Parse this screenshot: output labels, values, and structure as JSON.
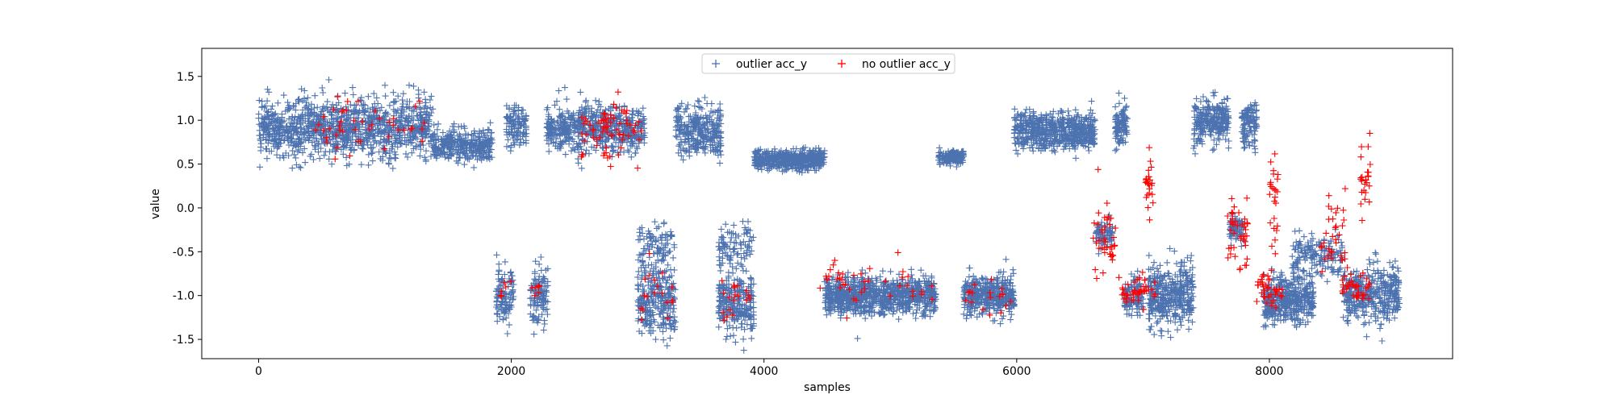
{
  "chart_data": {
    "type": "scatter",
    "title": "",
    "xlabel": "samples",
    "ylabel": "value",
    "xlim": [
      -450,
      9450
    ],
    "ylim": [
      -1.72,
      1.82
    ],
    "xticks": [
      0,
      2000,
      4000,
      6000,
      8000
    ],
    "yticks": [
      -1.5,
      -1.0,
      -0.5,
      0.0,
      0.5,
      1.0,
      1.5
    ],
    "xtick_labels": [
      "0",
      "2000",
      "4000",
      "6000",
      "8000"
    ],
    "ytick_labels": [
      "-1.5",
      "-1.0",
      "-0.5",
      "0.0",
      "0.5",
      "1.0",
      "1.5"
    ],
    "grid": false,
    "legend_placement": "top-center",
    "marker": "+",
    "series": [
      {
        "name": "outlier acc_y",
        "color": "#4c72b0",
        "clusters": [
          {
            "x_range": [
              0,
              1380
            ],
            "y_center": 0.9,
            "y_spread": 0.28,
            "count": 1100
          },
          {
            "x_range": [
              1380,
              1850
            ],
            "y_center": 0.72,
            "y_spread": 0.16,
            "count": 320
          },
          {
            "x_range": [
              1880,
              2020
            ],
            "y_center": -1.0,
            "y_spread": 0.26,
            "count": 110
          },
          {
            "x_range": [
              1960,
              2120
            ],
            "y_center": 0.92,
            "y_spread": 0.2,
            "count": 110
          },
          {
            "x_range": [
              2150,
              2290
            ],
            "y_center": -1.0,
            "y_spread": 0.26,
            "count": 110
          },
          {
            "x_range": [
              2280,
              3060
            ],
            "y_center": 0.9,
            "y_spread": 0.22,
            "count": 620
          },
          {
            "x_range": [
              3000,
              3300
            ],
            "y_center": -1.05,
            "y_spread": 0.32,
            "count": 260
          },
          {
            "x_range": [
              3000,
              3300
            ],
            "y_center": -0.45,
            "y_spread": 0.25,
            "count": 90
          },
          {
            "x_range": [
              3300,
              3660
            ],
            "y_center": 0.88,
            "y_spread": 0.22,
            "count": 300
          },
          {
            "x_range": [
              3640,
              3920
            ],
            "y_center": -1.1,
            "y_spread": 0.3,
            "count": 260
          },
          {
            "x_range": [
              3640,
              3920
            ],
            "y_center": -0.45,
            "y_spread": 0.25,
            "count": 90
          },
          {
            "x_range": [
              3920,
              4480
            ],
            "y_center": 0.55,
            "y_spread": 0.09,
            "count": 500
          },
          {
            "x_range": [
              4480,
              5360
            ],
            "y_center": -1.0,
            "y_spread": 0.17,
            "count": 900
          },
          {
            "x_range": [
              5380,
              5580
            ],
            "y_center": 0.58,
            "y_spread": 0.07,
            "count": 160
          },
          {
            "x_range": [
              5580,
              5980
            ],
            "y_center": -1.0,
            "y_spread": 0.18,
            "count": 420
          },
          {
            "x_range": [
              5980,
              6620
            ],
            "y_center": 0.88,
            "y_spread": 0.17,
            "count": 600
          },
          {
            "x_range": [
              6620,
              6760
            ],
            "y_center": -0.3,
            "y_spread": 0.13,
            "count": 80
          },
          {
            "x_range": [
              6780,
              6880
            ],
            "y_center": 0.95,
            "y_spread": 0.22,
            "count": 100
          },
          {
            "x_range": [
              6850,
              7000
            ],
            "y_center": -1.0,
            "y_spread": 0.18,
            "count": 110
          },
          {
            "x_range": [
              7040,
              7400
            ],
            "y_center": -1.0,
            "y_spread": 0.28,
            "count": 380
          },
          {
            "x_range": [
              7400,
              7680
            ],
            "y_center": 0.98,
            "y_spread": 0.2,
            "count": 260
          },
          {
            "x_range": [
              7680,
              7800
            ],
            "y_center": -0.25,
            "y_spread": 0.13,
            "count": 70
          },
          {
            "x_range": [
              7780,
              7900
            ],
            "y_center": 0.95,
            "y_spread": 0.22,
            "count": 110
          },
          {
            "x_range": [
              7950,
              8350
            ],
            "y_center": -1.05,
            "y_spread": 0.22,
            "count": 420
          },
          {
            "x_range": [
              8180,
              8580
            ],
            "y_center": -0.55,
            "y_spread": 0.2,
            "count": 160
          },
          {
            "x_range": [
              8580,
              9030
            ],
            "y_center": -1.0,
            "y_spread": 0.26,
            "count": 380
          }
        ]
      },
      {
        "name": "no outlier acc_y",
        "color": "#ff0000",
        "clusters": [
          {
            "x_range": [
              450,
              1350
            ],
            "y_center": 0.95,
            "y_spread": 0.25,
            "count": 45
          },
          {
            "x_range": [
              1900,
              2000
            ],
            "y_center": -0.92,
            "y_spread": 0.1,
            "count": 6
          },
          {
            "x_range": [
              2150,
              2250
            ],
            "y_center": -0.92,
            "y_spread": 0.1,
            "count": 6
          },
          {
            "x_range": [
              2550,
              3030
            ],
            "y_center": 0.9,
            "y_spread": 0.28,
            "count": 70
          },
          {
            "x_range": [
              3020,
              3280
            ],
            "y_center": -0.95,
            "y_spread": 0.3,
            "count": 18
          },
          {
            "x_range": [
              3650,
              3900
            ],
            "y_center": -1.0,
            "y_spread": 0.25,
            "count": 18
          },
          {
            "x_range": [
              4440,
              5350
            ],
            "y_center": -0.85,
            "y_spread": 0.2,
            "count": 40
          },
          {
            "x_range": [
              5560,
              5960
            ],
            "y_center": -1.0,
            "y_spread": 0.2,
            "count": 18
          },
          {
            "x_range": [
              6600,
              6820
            ],
            "y_center": -0.3,
            "y_spread": 0.45,
            "count": 40
          },
          {
            "x_range": [
              6800,
              7100
            ],
            "y_center": -0.95,
            "y_spread": 0.15,
            "count": 40
          },
          {
            "x_range": [
              7020,
              7080
            ],
            "y_center": 0.3,
            "y_spread": 0.35,
            "count": 25
          },
          {
            "x_range": [
              7660,
              7830
            ],
            "y_center": -0.3,
            "y_spread": 0.45,
            "count": 40
          },
          {
            "x_range": [
              7900,
              8100
            ],
            "y_center": -0.95,
            "y_spread": 0.15,
            "count": 40
          },
          {
            "x_range": [
              8000,
              8070
            ],
            "y_center": 0.2,
            "y_spread": 0.4,
            "count": 25
          },
          {
            "x_range": [
              8400,
              8600
            ],
            "y_center": -0.35,
            "y_spread": 0.45,
            "count": 35
          },
          {
            "x_range": [
              8580,
              8800
            ],
            "y_center": -0.9,
            "y_spread": 0.15,
            "count": 35
          },
          {
            "x_range": [
              8720,
              8800
            ],
            "y_center": 0.3,
            "y_spread": 0.35,
            "count": 25
          }
        ]
      }
    ]
  }
}
